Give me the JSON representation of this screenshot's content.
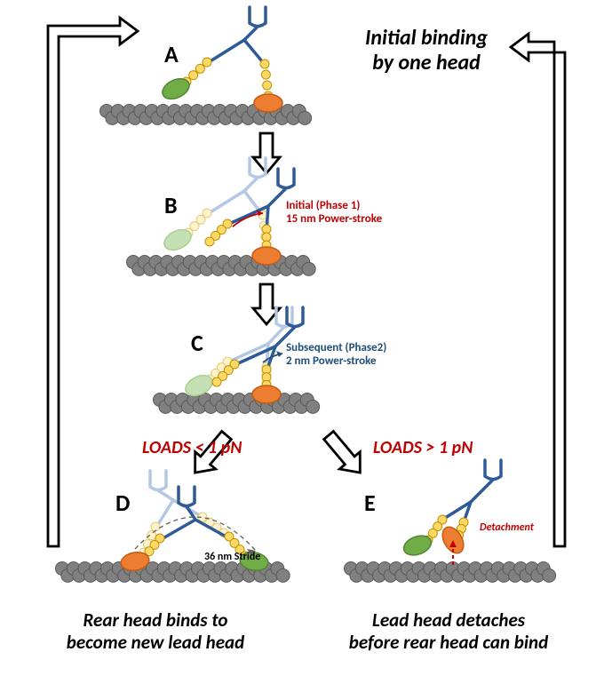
{
  "title": {
    "line1": "Initial binding",
    "line2": "by one head",
    "fontsize": 24,
    "color": "#000000"
  },
  "states": {
    "A": "A",
    "B": "B",
    "C": "C",
    "D": "D",
    "E": "E",
    "letter_fontsize": 26,
    "letter_color": "#000000"
  },
  "annotations": {
    "B": {
      "line1": "Initial (Phase 1)",
      "line2": "15 nm Power-stroke",
      "color": "#c00000",
      "fontsize": 13
    },
    "C": {
      "line1": "Subsequent (Phase2)",
      "line2": "2 nm Power-stroke",
      "color": "#1f4e79",
      "fontsize": 13
    },
    "D_branch": "LOADS < 1 pN",
    "E_branch": "LOADS > 1 pN",
    "branch_fontsize": 20,
    "branch_color": "#c00000",
    "stride": "36 nm Stride",
    "stride_color": "#000000",
    "stride_fontsize": 12,
    "detachment": "Detachment",
    "detachment_color": "#c00000",
    "detachment_fontsize": 12
  },
  "captions": {
    "D": {
      "line1": "Rear head binds to",
      "line2": "become new lead head",
      "fontsize": 21
    },
    "E": {
      "line1": "Lead head detaches",
      "line2": "before rear head can bind",
      "fontsize": 21
    }
  },
  "colors": {
    "actin": "#808080",
    "actin_border": "#595959",
    "stalk": "#2e5b97",
    "stalk_faded": "#b4c7e4",
    "neck_bead": "#ffd966",
    "neck_bead_border": "#bf9000",
    "neck_bead_faded": "#fff2cc",
    "neck_bead_faded_border": "#e0cc7a",
    "head_green": "#70ad47",
    "head_green_border": "#548235",
    "head_green_faded": "#c5e0b4",
    "head_green_faded_border": "#a9d08e",
    "head_orange": "#ed7d31",
    "head_orange_border": "#c55a11",
    "arrow_stroke": "#000000",
    "arrow_fill": "#ffffff"
  },
  "geometry": {
    "actin_bead_r": 7.5,
    "neck_bead_r": 5,
    "head_rx": 16,
    "head_ry": 10,
    "cargo_w": 18,
    "cargo_h": 22
  }
}
